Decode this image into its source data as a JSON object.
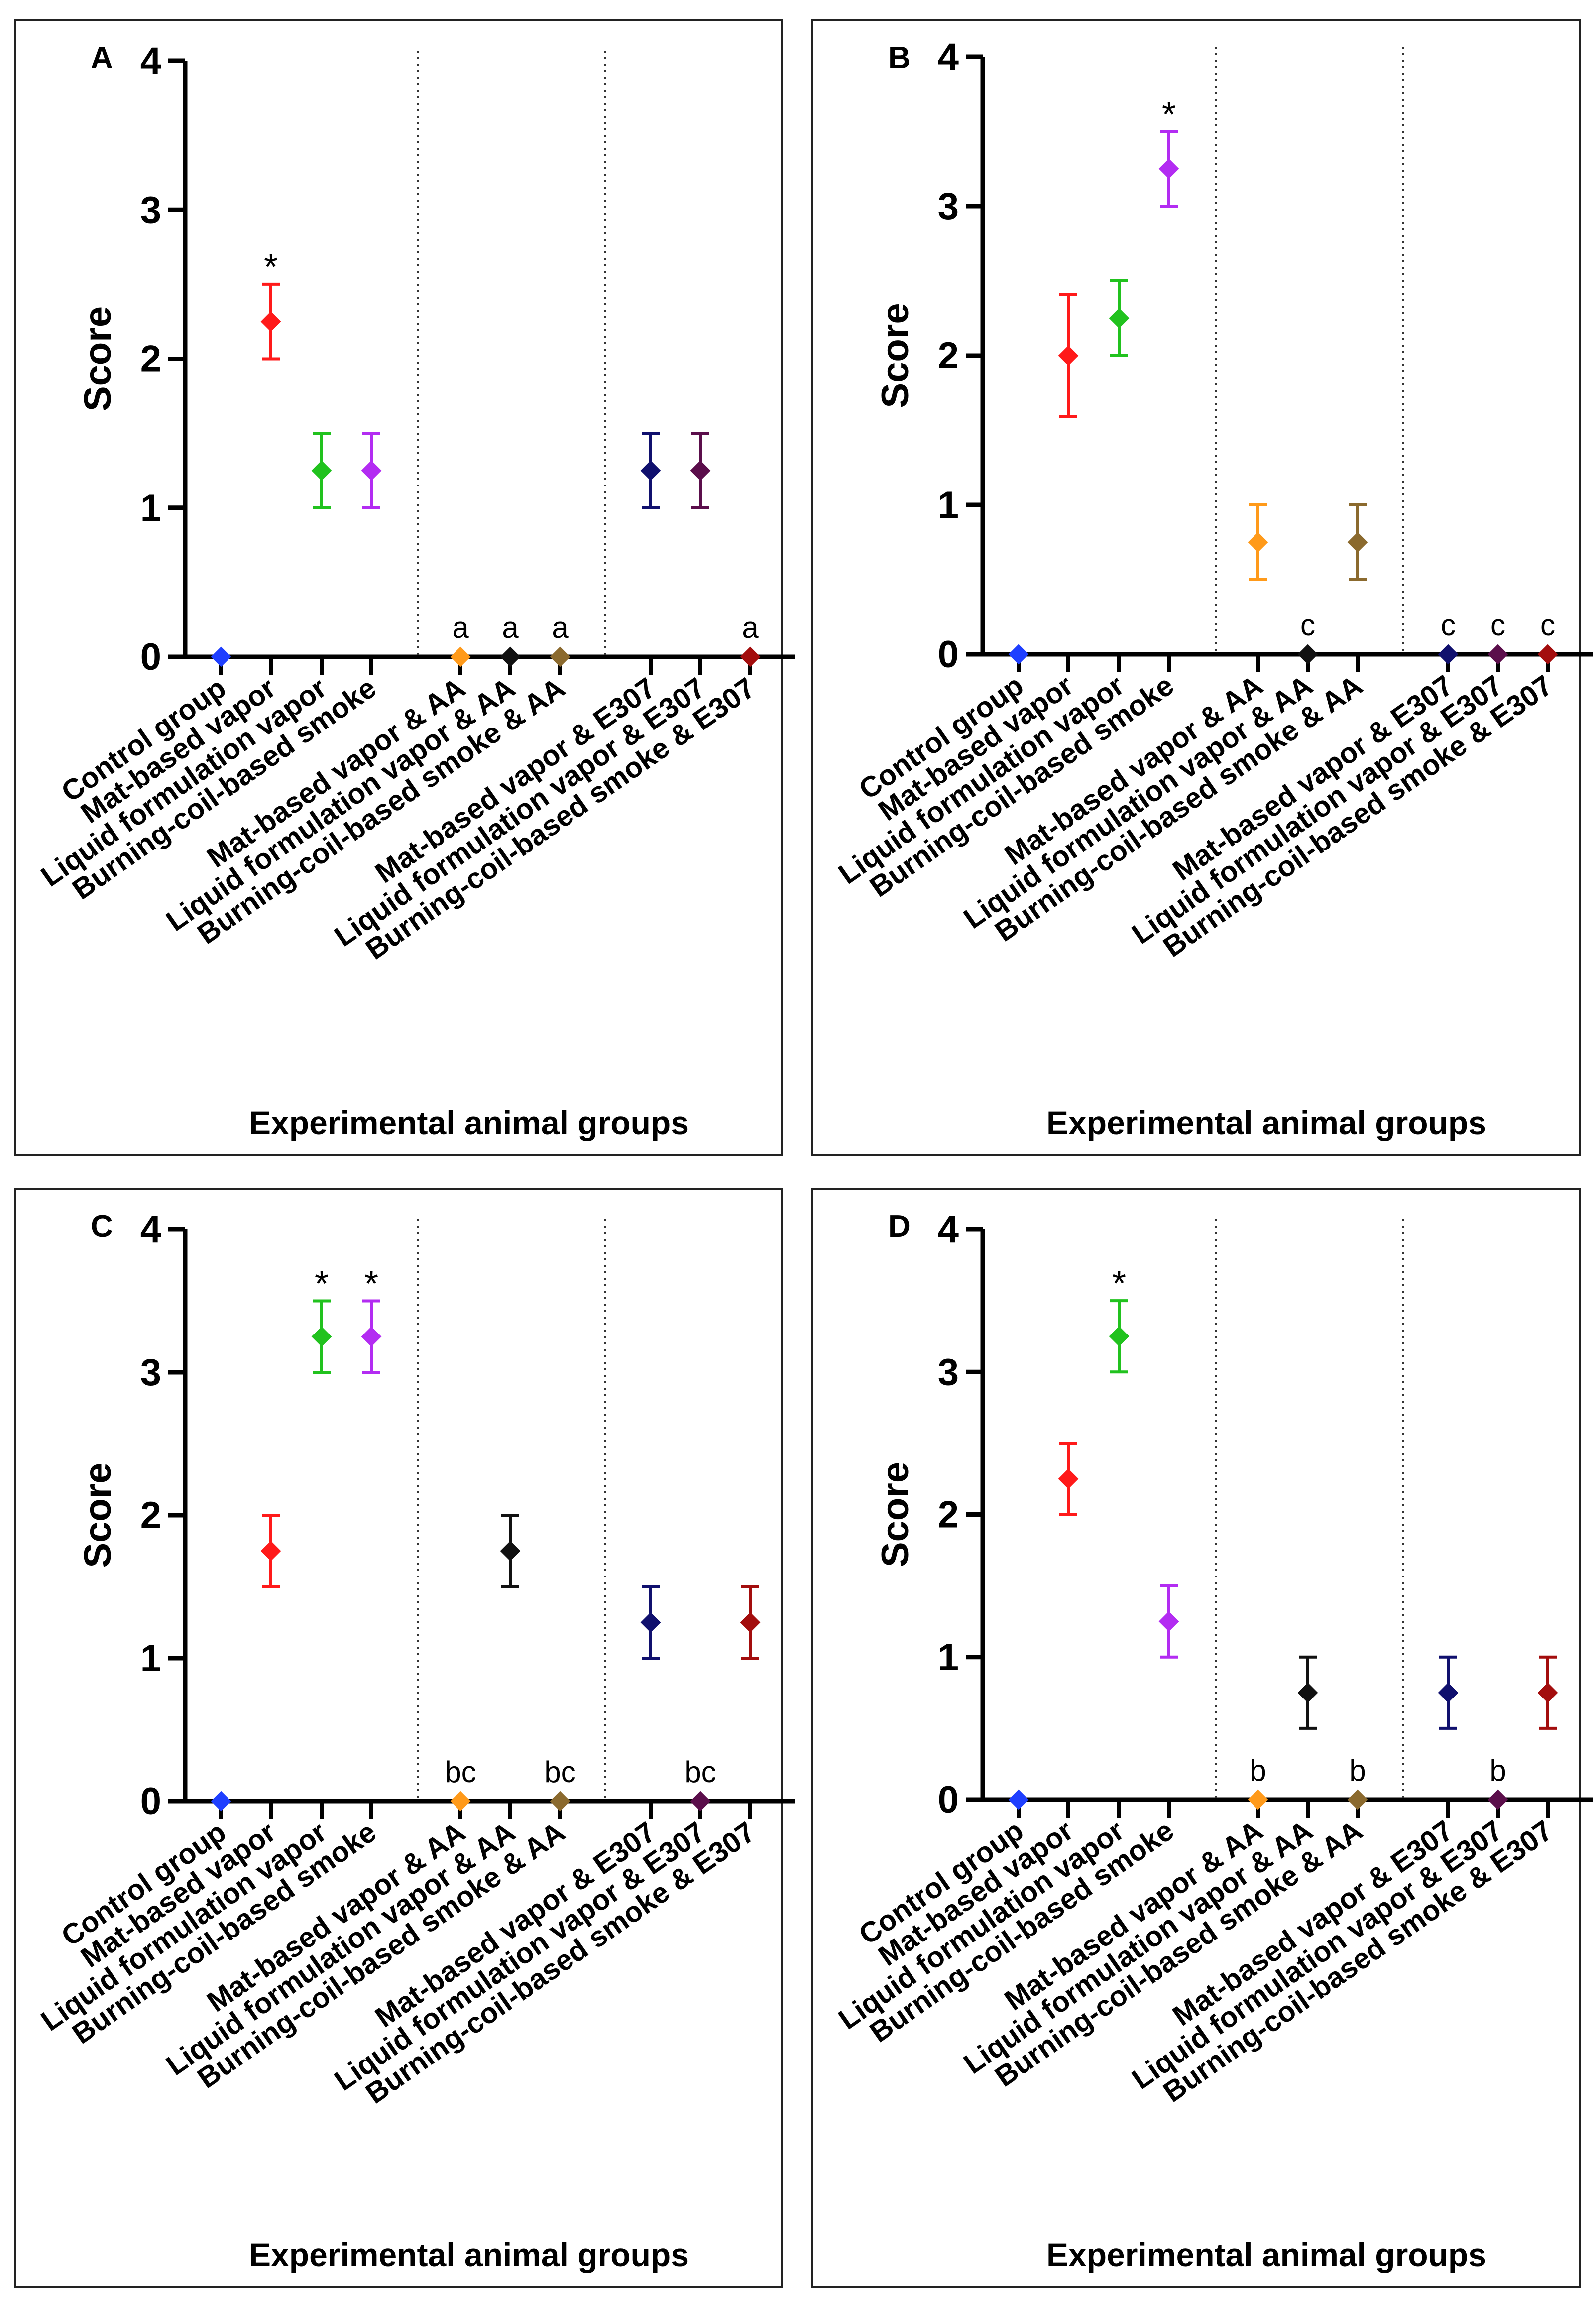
{
  "group_colors": [
    "#1f3fff",
    "#ff1a1a",
    "#21c21e",
    "#b32cf2",
    "#ff9a1a",
    "#111111",
    "#8b6a2e",
    "#10106e",
    "#5b0e4b",
    "#a30d0d"
  ],
  "chart_data": [
    {
      "panel": "A",
      "type": "scatter",
      "style": "mean with error bars",
      "ylabel": "Score",
      "xlabel": "Experimental animal groups",
      "ylim": [
        0,
        4
      ],
      "yticks": [
        "0",
        "1",
        "2",
        "3",
        "4"
      ],
      "categories": [
        "Control group",
        "Mat-based vapor",
        "Liquid formulation vapor",
        "Burning-coil-based smoke",
        "Mat-based vapor & AA",
        "Liquid formulation vapor & AA",
        "Burning-coil-based smoke & AA",
        "Mat-based vapor & E307",
        "Liquid formulation vapor & E307",
        "Burning-coil-based smoke & E307"
      ],
      "values": [
        0,
        2.25,
        1.25,
        1.25,
        0,
        0,
        0,
        1.25,
        1.25,
        0
      ],
      "errors": [
        0,
        0.25,
        0.25,
        0.25,
        0,
        0,
        0,
        0.25,
        0.25,
        0
      ],
      "annotations": [
        "",
        "*",
        "",
        "",
        "a",
        "a",
        "a",
        "",
        "",
        "a"
      ]
    },
    {
      "panel": "B",
      "type": "scatter",
      "style": "mean with error bars",
      "ylabel": "Score",
      "xlabel": "Experimental animal groups",
      "ylim": [
        0,
        4
      ],
      "yticks": [
        "0",
        "1",
        "2",
        "3",
        "4"
      ],
      "categories": [
        "Control group",
        "Mat-based vapor",
        "Liquid formulation vapor",
        "Burning-coil-based smoke",
        "Mat-based vapor & AA",
        "Liquid formulation vapor & AA",
        "Burning-coil-based smoke & AA",
        "Mat-based vapor & E307",
        "Liquid formulation vapor & E307",
        "Burning-coil-based smoke & E307"
      ],
      "values": [
        0,
        2.0,
        2.25,
        3.25,
        0.75,
        0,
        0.75,
        0,
        0,
        0
      ],
      "errors": [
        0,
        0.41,
        0.25,
        0.25,
        0.25,
        0,
        0.25,
        0,
        0,
        0
      ],
      "annotations": [
        "",
        "",
        "",
        "*",
        "",
        "c",
        "",
        "c",
        "c",
        "c"
      ]
    },
    {
      "panel": "C",
      "type": "scatter",
      "style": "mean with error bars",
      "ylabel": "Score",
      "xlabel": "Experimental animal groups",
      "ylim": [
        0,
        4
      ],
      "yticks": [
        "0",
        "1",
        "2",
        "3",
        "4"
      ],
      "categories": [
        "Control group",
        "Mat-based vapor",
        "Liquid formulation vapor",
        "Burning-coil-based smoke",
        "Mat-based vapor & AA",
        "Liquid formulation vapor & AA",
        "Burning-coil-based smoke & AA",
        "Mat-based vapor & E307",
        "Liquid formulation vapor & E307",
        "Burning-coil-based smoke & E307"
      ],
      "values": [
        0,
        1.75,
        3.25,
        3.25,
        0,
        1.75,
        0,
        1.25,
        0,
        1.25
      ],
      "errors": [
        0,
        0.25,
        0.25,
        0.25,
        0,
        0.25,
        0,
        0.25,
        0,
        0.25
      ],
      "annotations": [
        "",
        "",
        "*",
        "*",
        "bc",
        "",
        "bc",
        "",
        "bc",
        ""
      ]
    },
    {
      "panel": "D",
      "type": "scatter",
      "style": "mean with error bars",
      "ylabel": "Score",
      "xlabel": "Experimental animal groups",
      "ylim": [
        0,
        4
      ],
      "yticks": [
        "0",
        "1",
        "2",
        "3",
        "4"
      ],
      "categories": [
        "Control group",
        "Mat-based vapor",
        "Liquid formulation vapor",
        "Burning-coil-based smoke",
        "Mat-based vapor & AA",
        "Liquid formulation vapor & AA",
        "Burning-coil-based smoke & AA",
        "Mat-based vapor & E307",
        "Liquid formulation vapor & E307",
        "Burning-coil-based smoke & E307"
      ],
      "values": [
        0,
        2.25,
        3.25,
        1.25,
        0,
        0.75,
        0,
        0.75,
        0,
        0.75
      ],
      "errors": [
        0,
        0.25,
        0.25,
        0.25,
        0,
        0.25,
        0,
        0.25,
        0,
        0.25
      ],
      "annotations": [
        "",
        "",
        "*",
        "",
        "b",
        "",
        "b",
        "",
        "b",
        ""
      ]
    }
  ]
}
